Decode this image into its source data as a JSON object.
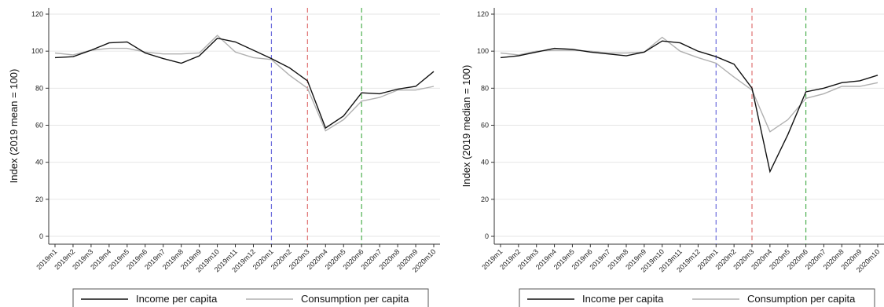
{
  "chart_data": [
    {
      "type": "line",
      "ylabel": "Index (2019 mean = 100)",
      "ylim": [
        0,
        120
      ],
      "yticks": [
        0,
        20,
        40,
        60,
        80,
        100,
        120
      ],
      "grid": true,
      "categories": [
        "2019m1",
        "2019m2",
        "2019m3",
        "2019m4",
        "2019m5",
        "2019m6",
        "2019m7",
        "2019m8",
        "2019m9",
        "2019m10",
        "2019m11",
        "2019m12",
        "2020m1",
        "2020m2",
        "2020m3",
        "2020m4",
        "2020m5",
        "2020m6",
        "2020m7",
        "2020m8",
        "2020m9",
        "2020m10"
      ],
      "vlines": [
        {
          "at": "2020m1",
          "color": "#6b6bdc"
        },
        {
          "at": "2020m3",
          "color": "#e07070"
        },
        {
          "at": "2020m6",
          "color": "#4caf50"
        }
      ],
      "series": [
        {
          "name": "Income per capita",
          "color": "#111111",
          "values": [
            96.5,
            97,
            100.5,
            104.5,
            105,
            99,
            96,
            93.5,
            97.5,
            107,
            105,
            100.5,
            96,
            91,
            84,
            58.5,
            65,
            77.5,
            77,
            79.5,
            81,
            89
          ]
        },
        {
          "name": "Consumption per capita",
          "color": "#b0b0b0",
          "values": [
            99,
            98,
            100.5,
            101.5,
            101.5,
            99.5,
            98.5,
            98.5,
            99,
            108.5,
            99.5,
            96.5,
            95.5,
            87,
            80,
            57,
            63,
            73,
            75,
            79,
            79,
            81
          ]
        }
      ],
      "legend": "bottom"
    },
    {
      "type": "line",
      "ylabel": "Index (2019 median = 100)",
      "ylim": [
        0,
        120
      ],
      "yticks": [
        0,
        20,
        40,
        60,
        80,
        100,
        120
      ],
      "grid": true,
      "categories": [
        "2019m1",
        "2019m2",
        "2019m3",
        "2019m4",
        "2019m5",
        "2019m6",
        "2019m7",
        "2019m8",
        "2019m9",
        "2019m10",
        "2019m11",
        "2019m12",
        "2020m1",
        "2020m2",
        "2020m3",
        "2020m4",
        "2020m5",
        "2020m6",
        "2020m7",
        "2020m8",
        "2020m9",
        "2020m10"
      ],
      "vlines": [
        {
          "at": "2020m1",
          "color": "#6b6bdc"
        },
        {
          "at": "2020m3",
          "color": "#e07070"
        },
        {
          "at": "2020m6",
          "color": "#4caf50"
        }
      ],
      "series": [
        {
          "name": "Income per capita",
          "color": "#111111",
          "values": [
            96.5,
            97.5,
            99.5,
            101.5,
            101,
            99.5,
            98.5,
            97.5,
            99.5,
            105.5,
            104.5,
            100,
            97,
            93,
            80,
            35,
            55,
            78,
            80,
            83,
            84,
            87
          ]
        },
        {
          "name": "Consumption per capita",
          "color": "#b0b0b0",
          "values": [
            99,
            98,
            100,
            100.5,
            100.5,
            100,
            99,
            99,
            99.5,
            107.5,
            100,
            96.5,
            93.5,
            86,
            79,
            56.5,
            63,
            74.5,
            77,
            81,
            81,
            83
          ]
        }
      ],
      "legend": "bottom"
    }
  ]
}
